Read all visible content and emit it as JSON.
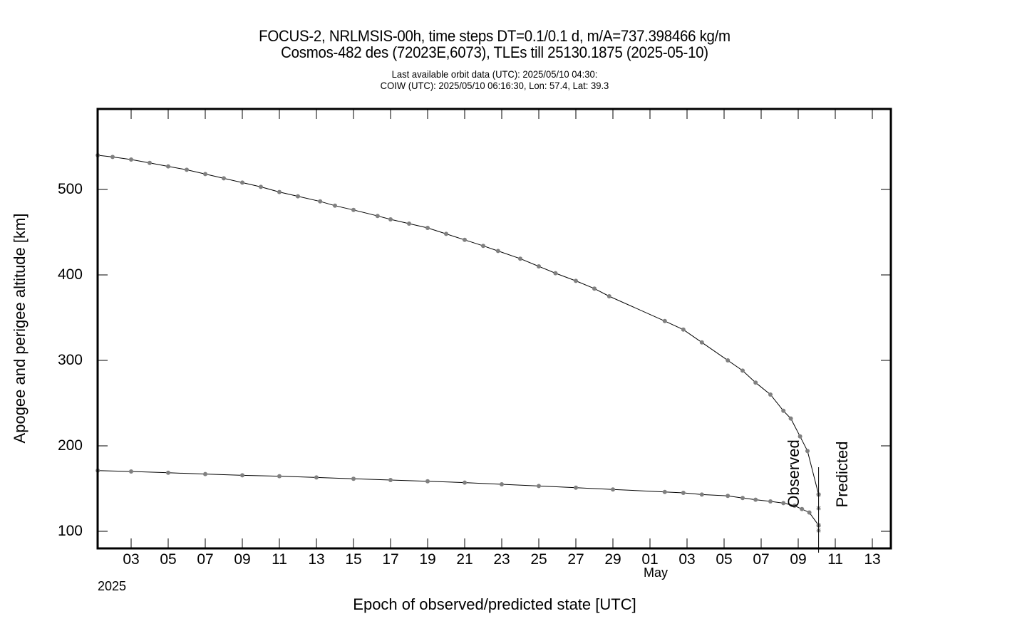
{
  "header": {
    "title_line1": "FOCUS-2, NRLMSIS-00h, time steps DT=0.1/0.1 d, m/A=737.398466 kg/m",
    "title_line2": "Cosmos-482 des (72023E,6073), TLEs till 25130.1875 (2025-05-10)",
    "subtitle_line1": "Last available orbit data (UTC): 2025/05/10 04:30:",
    "subtitle_line2": "COIW (UTC): 2025/05/10 06:16:30, Lon:  57.4, Lat:  39.3"
  },
  "annotations": {
    "observed": "Observed",
    "predicted": "Predicted",
    "year": "2025",
    "month": "May"
  },
  "chart_data": {
    "type": "line",
    "title": "FOCUS-2, NRLMSIS-00h, time steps DT=0.1/0.1 d, m/A=737.398466 kg/m — Cosmos-482 des (72023E,6073), TLEs till 25130.1875 (2025-05-10)",
    "xlabel": "Epoch of observed/predicted state [UTC]",
    "ylabel": "Apogee and perigee altitude [km]",
    "x_unit": "day index (1 = 2025-04-01, 31 = 2025-05-01)",
    "xlim": [
      1.2,
      44.0
    ],
    "ylim": [
      80,
      594
    ],
    "grid": false,
    "legend": "none",
    "x_ticks": [
      {
        "day": 3,
        "label": "03"
      },
      {
        "day": 5,
        "label": "05"
      },
      {
        "day": 7,
        "label": "07"
      },
      {
        "day": 9,
        "label": "09"
      },
      {
        "day": 11,
        "label": "11"
      },
      {
        "day": 13,
        "label": "13"
      },
      {
        "day": 15,
        "label": "15"
      },
      {
        "day": 17,
        "label": "17"
      },
      {
        "day": 19,
        "label": "19"
      },
      {
        "day": 21,
        "label": "21"
      },
      {
        "day": 23,
        "label": "23"
      },
      {
        "day": 25,
        "label": "25"
      },
      {
        "day": 27,
        "label": "27"
      },
      {
        "day": 29,
        "label": "29"
      },
      {
        "day": 31,
        "label": "01"
      },
      {
        "day": 33,
        "label": "03"
      },
      {
        "day": 35,
        "label": "05"
      },
      {
        "day": 37,
        "label": "07"
      },
      {
        "day": 39,
        "label": "09"
      },
      {
        "day": 41,
        "label": "11"
      },
      {
        "day": 43,
        "label": "13"
      }
    ],
    "y_ticks": [
      100,
      200,
      300,
      400,
      500
    ],
    "observed_predicted_boundary": {
      "day": 40.1,
      "y_top": 175,
      "y_bottom": 80
    },
    "series": [
      {
        "name": "Apogee (observed)",
        "marker": "dot",
        "color": "#808080",
        "line_color": "#000000",
        "points": [
          [
            1.2,
            540
          ],
          [
            2.0,
            538
          ],
          [
            3.0,
            535
          ],
          [
            4.0,
            531
          ],
          [
            5.0,
            527
          ],
          [
            6.0,
            523
          ],
          [
            7.0,
            518
          ],
          [
            8.0,
            513
          ],
          [
            9.0,
            508
          ],
          [
            10.0,
            503
          ],
          [
            11.0,
            497
          ],
          [
            12.0,
            492
          ],
          [
            13.2,
            486
          ],
          [
            14.0,
            481
          ],
          [
            15.0,
            476
          ],
          [
            16.3,
            469
          ],
          [
            17.0,
            465
          ],
          [
            18.0,
            460
          ],
          [
            19.0,
            455
          ],
          [
            20.0,
            448
          ],
          [
            21.0,
            441
          ],
          [
            22.0,
            434
          ],
          [
            22.8,
            428
          ],
          [
            24.0,
            419
          ],
          [
            25.0,
            410
          ],
          [
            25.9,
            402
          ],
          [
            27.0,
            393
          ],
          [
            28.0,
            384
          ],
          [
            28.8,
            375
          ],
          [
            31.8,
            346
          ],
          [
            32.8,
            336
          ],
          [
            33.8,
            321
          ],
          [
            35.2,
            300
          ],
          [
            36.0,
            288
          ],
          [
            36.7,
            274
          ],
          [
            37.5,
            260
          ],
          [
            38.2,
            241
          ],
          [
            38.6,
            232
          ],
          [
            39.1,
            211
          ],
          [
            39.5,
            194
          ],
          [
            40.1,
            143
          ]
        ]
      },
      {
        "name": "Perigee (observed)",
        "marker": "dot",
        "color": "#808080",
        "line_color": "#000000",
        "points": [
          [
            1.2,
            171
          ],
          [
            3.0,
            170
          ],
          [
            5.0,
            168.5
          ],
          [
            7.0,
            167
          ],
          [
            9.0,
            165.5
          ],
          [
            11.0,
            164.5
          ],
          [
            13.0,
            163
          ],
          [
            15.0,
            161.5
          ],
          [
            17.0,
            160
          ],
          [
            19.0,
            158.5
          ],
          [
            21.0,
            157
          ],
          [
            23.0,
            155
          ],
          [
            25.0,
            153
          ],
          [
            27.0,
            151
          ],
          [
            29.0,
            149
          ],
          [
            31.8,
            146
          ],
          [
            32.8,
            145
          ],
          [
            33.8,
            143
          ],
          [
            35.2,
            141.5
          ],
          [
            36.0,
            139
          ],
          [
            36.7,
            137
          ],
          [
            37.5,
            135
          ],
          [
            38.2,
            133
          ],
          [
            38.8,
            130
          ],
          [
            39.2,
            126
          ],
          [
            39.6,
            122
          ],
          [
            40.1,
            107
          ]
        ]
      },
      {
        "name": "Predicted",
        "marker": "star",
        "color": "#808080",
        "line_color": null,
        "points": [
          [
            40.1,
            143
          ],
          [
            40.1,
            127
          ],
          [
            40.1,
            107
          ],
          [
            40.1,
            101
          ]
        ]
      }
    ]
  }
}
